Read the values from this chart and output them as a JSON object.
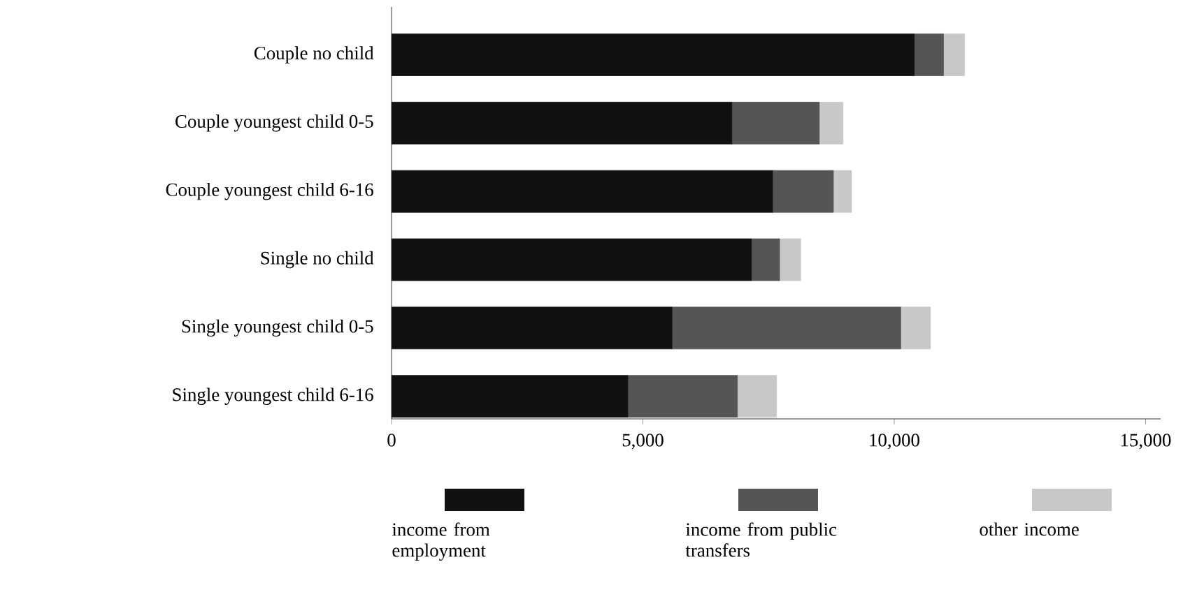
{
  "chart_data": {
    "type": "bar",
    "orientation": "horizontal",
    "stacked": true,
    "categories": [
      "Couple no child",
      "Couple youngest child 0-5",
      "Couple youngest child 6-16",
      "Single no child",
      "Single youngest child 0-5",
      "Single youngest child 6-16"
    ],
    "series": [
      {
        "name": "income from employment",
        "color": "#111111",
        "values": [
          10400,
          6770,
          7580,
          7160,
          5580,
          4700
        ]
      },
      {
        "name": "income from public transfers",
        "color": "#555555",
        "values": [
          580,
          1740,
          1210,
          560,
          4550,
          2180
        ]
      },
      {
        "name": "other income",
        "color": "#c8c8c8",
        "values": [
          420,
          470,
          360,
          420,
          590,
          780
        ]
      }
    ],
    "xlim": [
      0,
      15300
    ],
    "xticks": [
      0,
      {
        "value": 5000,
        "label": "5,000"
      },
      {
        "value": 10000,
        "label": "10,000"
      },
      {
        "value": 15000,
        "label": "15,000"
      }
    ],
    "grid": false,
    "legend": "bottom"
  }
}
